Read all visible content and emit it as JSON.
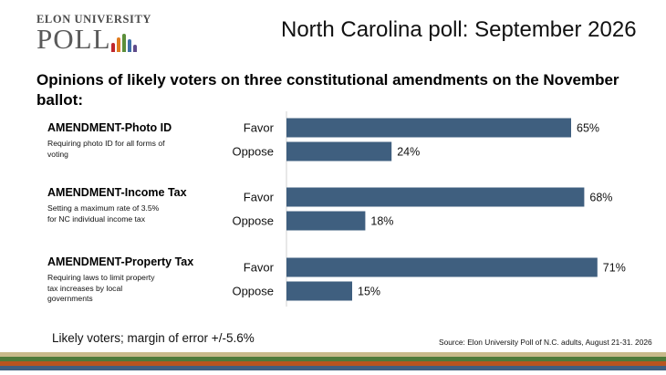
{
  "logo": {
    "top_text": "ELON UNIVERSITY",
    "main_text": "POLL",
    "bar_colors": [
      "#c0272d",
      "#e07b1f",
      "#5b8f3a",
      "#3f6fa8",
      "#5e4b8b"
    ]
  },
  "header": {
    "title": "North Carolina poll: September 2026",
    "subtitle": "Opinions of likely voters on three constitutional amendments on the November ballot:"
  },
  "amendments": [
    {
      "title": "AMENDMENT-Photo ID",
      "description": "Requiring  photo ID for all forms of voting"
    },
    {
      "title": "AMENDMENT-Income Tax",
      "description": "Setting a maximum rate of 3.5% for NC individual income tax"
    },
    {
      "title": "AMENDMENT-Property Tax",
      "description": "Requiring laws to limit property tax increases by local governments"
    }
  ],
  "chart_data": {
    "type": "bar",
    "orientation": "horizontal",
    "groups": [
      "AMENDMENT-Photo ID",
      "AMENDMENT-Income Tax",
      "AMENDMENT-Property Tax"
    ],
    "categories": [
      "Favor",
      "Oppose",
      "Favor",
      "Oppose",
      "Favor",
      "Oppose"
    ],
    "values": [
      65,
      24,
      68,
      18,
      71,
      15
    ],
    "value_labels": [
      "65%",
      "24%",
      "68%",
      "18%",
      "71%",
      "15%"
    ],
    "unit": "%",
    "xlim": [
      0,
      100
    ],
    "bar_color": "#3f5f7f",
    "grid": false,
    "legend": "none"
  },
  "footer": {
    "note": "Likely voters; margin of error +/-5.6%",
    "source": "Source: Elon University Poll of N.C. adults, August 21-31. 2026"
  },
  "stripe_colors": [
    "#c8b98a",
    "#4d7a3a",
    "#b8541f",
    "#3f5f7f"
  ]
}
